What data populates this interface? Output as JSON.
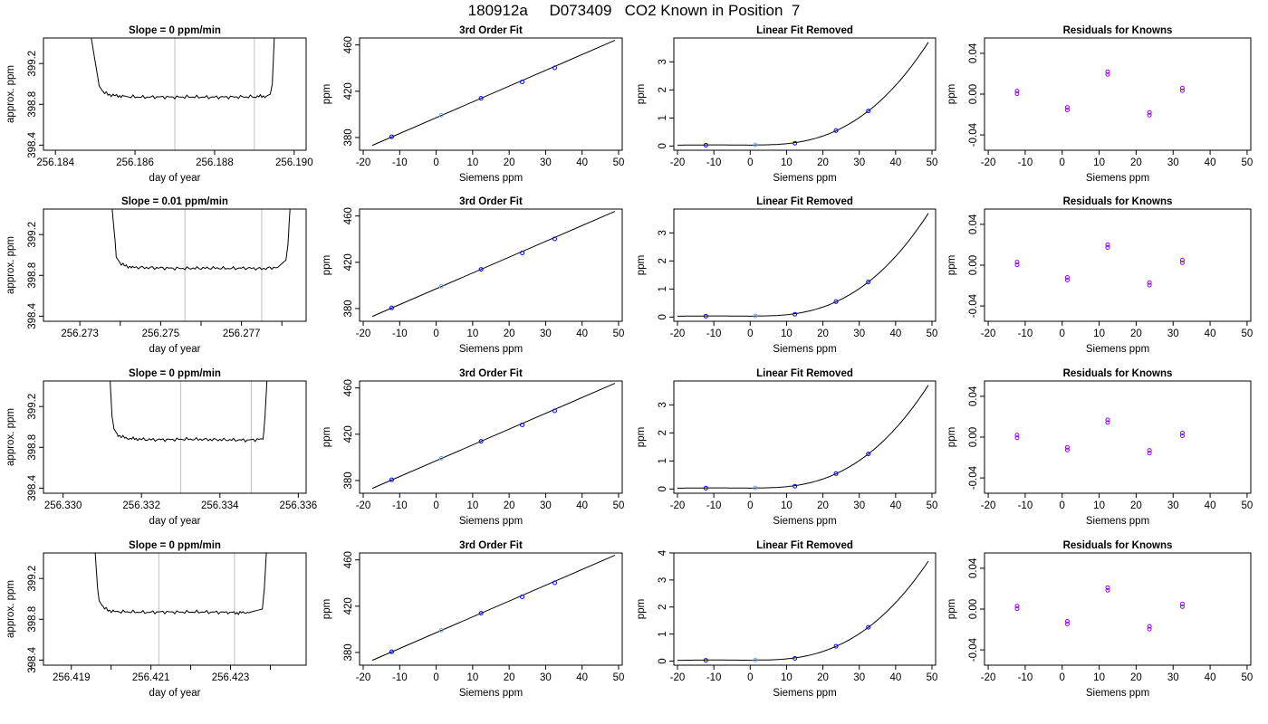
{
  "page_title": "180912a     D073409   CO2 Known in Position  7",
  "colors": {
    "trace": "#000000",
    "marker_line": "#c8c8c8",
    "known_points": "#0000ff",
    "residual_points": "#9900ff",
    "reference_point": "#66aaff"
  },
  "chart_data": [
    {
      "type": "line",
      "title": "Slope =  0  ppm/min",
      "xlabel": "day of year",
      "ylabel": "approx. ppm",
      "xlim": [
        256.1837,
        256.1903
      ],
      "ylim": [
        398.35,
        399.45
      ],
      "xticks": [
        256.184,
        256.186,
        256.188,
        256.19
      ],
      "xtick_labels": [
        "256.184",
        "256.186",
        "256.188",
        "256.190"
      ],
      "yticks": [
        398.4,
        398.8,
        399.2
      ],
      "ytick_labels": [
        "398.4",
        "398.8",
        "399.2"
      ],
      "markers": [
        256.187,
        256.189
      ],
      "x": [
        256.1849,
        256.18505,
        256.1851,
        256.1852,
        256.1853,
        256.1855,
        256.1858,
        256.1862,
        256.1866,
        256.187,
        256.1874,
        256.1878,
        256.1882,
        256.1886,
        256.189,
        256.1893,
        256.1894,
        256.18945,
        256.1895
      ],
      "y": [
        399.45,
        399.1,
        398.98,
        398.92,
        398.9,
        398.885,
        398.875,
        398.87,
        398.872,
        398.87,
        398.873,
        398.87,
        398.871,
        398.872,
        398.875,
        398.88,
        398.9,
        399.0,
        399.45
      ]
    },
    {
      "type": "scatter",
      "title": "3rd Order Fit",
      "xlabel": "Siemens ppm",
      "ylabel": "ppm",
      "xlim": [
        -21,
        51
      ],
      "ylim": [
        369,
        466
      ],
      "xticks": [
        -20,
        -10,
        0,
        10,
        20,
        30,
        40,
        50
      ],
      "xtick_labels": [
        "-20",
        "-10",
        "0",
        "10",
        "20",
        "30",
        "40",
        "50"
      ],
      "yticks": [
        380,
        420,
        460
      ],
      "ytick_labels": [
        "380",
        "420",
        "460"
      ],
      "fit_x": [
        -17.5,
        49
      ],
      "fit_y": [
        373.2,
        464
      ],
      "points_x": [
        -12.2,
        1.4,
        12.3,
        23.6,
        32.5
      ],
      "points_y": [
        380.6,
        399.2,
        413.9,
        428.1,
        440.2
      ]
    },
    {
      "type": "scatter",
      "title": "Linear Fit Removed",
      "xlabel": "Siemens ppm",
      "ylabel": "ppm",
      "xlim": [
        -21,
        51
      ],
      "ylim": [
        -0.15,
        3.85
      ],
      "xticks": [
        -20,
        -10,
        0,
        10,
        20,
        30,
        40,
        50
      ],
      "xtick_labels": [
        "-20",
        "-10",
        "0",
        "10",
        "20",
        "30",
        "40",
        "50"
      ],
      "yticks": [
        0,
        1,
        2,
        3
      ],
      "ytick_labels": [
        "0",
        "1",
        "2",
        "3"
      ],
      "points_x": [
        -12.2,
        1.4,
        12.3,
        23.6,
        32.5
      ],
      "points_y": [
        0.03,
        0.04,
        0.1,
        0.55,
        1.25
      ]
    },
    {
      "type": "scatter",
      "title": "Residuals for Knowns",
      "xlabel": "Siemens ppm",
      "ylabel": "ppm",
      "xlim": [
        -21,
        51
      ],
      "ylim": [
        -0.055,
        0.055
      ],
      "xticks": [
        -20,
        -10,
        0,
        10,
        20,
        30,
        40,
        50
      ],
      "xtick_labels": [
        "-20",
        "-10",
        "0",
        "10",
        "20",
        "30",
        "40",
        "50"
      ],
      "yticks": [
        -0.04,
        0,
        0.04
      ],
      "ytick_labels": [
        "-0.04",
        "0.00",
        "0.04"
      ],
      "points_x": [
        -12.2,
        1.4,
        12.3,
        23.6,
        32.5
      ],
      "points_y": [
        0.003,
        -0.013,
        0.022,
        -0.018,
        0.006
      ]
    },
    {
      "type": "line",
      "title": "Slope =  0.01  ppm/min",
      "xlabel": "day of year",
      "ylabel": "approx. ppm",
      "xlim": [
        256.2721,
        256.2786
      ],
      "ylim": [
        398.35,
        399.45
      ],
      "xticks": [
        256.273,
        256.274,
        256.275,
        256.276,
        256.277,
        256.278
      ],
      "xtick_labels": [
        "256.273",
        "",
        "256.275",
        "",
        "256.277",
        ""
      ],
      "yticks": [
        398.4,
        398.8,
        399.2
      ],
      "ytick_labels": [
        "398.4",
        "398.8",
        "399.2"
      ],
      "markers": [
        256.2756,
        256.2775
      ],
      "x": [
        256.2738,
        256.27388,
        256.2739,
        256.274,
        256.2741,
        256.2743,
        256.2747,
        256.2751,
        256.2755,
        256.2759,
        256.2763,
        256.2767,
        256.2771,
        256.2775,
        256.2779,
        256.2781,
        256.27815,
        256.2782
      ],
      "y": [
        399.45,
        399.1,
        398.98,
        398.92,
        398.895,
        398.88,
        398.875,
        398.872,
        398.868,
        398.87,
        398.872,
        398.868,
        398.872,
        398.865,
        398.88,
        398.95,
        399.1,
        399.45
      ]
    },
    {
      "type": "scatter",
      "title": "3rd Order Fit",
      "xlabel": "Siemens ppm",
      "ylabel": "ppm",
      "xlim": [
        -21,
        51
      ],
      "ylim": [
        369,
        466
      ],
      "xticks": [
        -20,
        -10,
        0,
        10,
        20,
        30,
        40,
        50
      ],
      "xtick_labels": [
        "-20",
        "-10",
        "0",
        "10",
        "20",
        "30",
        "40",
        "50"
      ],
      "yticks": [
        380,
        420,
        460
      ],
      "ytick_labels": [
        "380",
        "420",
        "460"
      ],
      "fit_x": [
        -17.5,
        49
      ],
      "fit_y": [
        373.2,
        464
      ],
      "points_x": [
        -12.2,
        1.4,
        12.3,
        23.6,
        32.5
      ],
      "points_y": [
        380.6,
        399.2,
        413.9,
        428.1,
        440.2
      ]
    },
    {
      "type": "scatter",
      "title": "Linear Fit Removed",
      "xlabel": "Siemens ppm",
      "ylabel": "ppm",
      "xlim": [
        -21,
        51
      ],
      "ylim": [
        -0.15,
        3.85
      ],
      "xticks": [
        -20,
        -10,
        0,
        10,
        20,
        30,
        40,
        50
      ],
      "xtick_labels": [
        "-20",
        "-10",
        "0",
        "10",
        "20",
        "30",
        "40",
        "50"
      ],
      "yticks": [
        0,
        1,
        2,
        3
      ],
      "ytick_labels": [
        "0",
        "1",
        "2",
        "3"
      ],
      "points_x": [
        -12.2,
        1.4,
        12.3,
        23.6,
        32.5
      ],
      "points_y": [
        0.03,
        0.04,
        0.1,
        0.55,
        1.25
      ]
    },
    {
      "type": "scatter",
      "title": "Residuals for Knowns",
      "xlabel": "Siemens ppm",
      "ylabel": "ppm",
      "xlim": [
        -21,
        51
      ],
      "ylim": [
        -0.055,
        0.055
      ],
      "xticks": [
        -20,
        -10,
        0,
        10,
        20,
        30,
        40,
        50
      ],
      "xtick_labels": [
        "-20",
        "-10",
        "0",
        "10",
        "20",
        "30",
        "40",
        "50"
      ],
      "yticks": [
        -0.04,
        0,
        0.04
      ],
      "ytick_labels": [
        "-0.04",
        "0.00",
        "0.04"
      ],
      "points_x": [
        -12.2,
        1.4,
        12.3,
        23.6,
        32.5
      ],
      "points_y": [
        0.003,
        -0.012,
        0.02,
        -0.017,
        0.005
      ]
    },
    {
      "type": "line",
      "title": "Slope =  0  ppm/min",
      "xlabel": "day of year",
      "ylabel": "approx. ppm",
      "xlim": [
        256.3295,
        256.3362
      ],
      "ylim": [
        398.35,
        399.45
      ],
      "xticks": [
        256.33,
        256.332,
        256.334,
        256.336
      ],
      "xtick_labels": [
        "256.330",
        "256.332",
        "256.334",
        "256.336"
      ],
      "yticks": [
        398.4,
        398.8,
        399.2
      ],
      "ytick_labels": [
        "398.4",
        "398.8",
        "399.2"
      ],
      "markers": [
        256.333,
        256.3348
      ],
      "x": [
        256.3312,
        256.33125,
        256.3313,
        256.3314,
        256.3316,
        256.3319,
        256.3323,
        256.3327,
        256.3331,
        256.3335,
        256.3339,
        256.3343,
        256.3347,
        256.3351,
        256.33512,
        256.33515,
        256.3352
      ],
      "y": [
        399.45,
        399.1,
        398.98,
        398.92,
        398.89,
        398.88,
        398.875,
        398.875,
        398.88,
        398.878,
        398.875,
        398.873,
        398.87,
        398.88,
        398.95,
        399.1,
        399.45
      ]
    },
    {
      "type": "scatter",
      "title": "3rd Order Fit",
      "xlabel": "Siemens ppm",
      "ylabel": "ppm",
      "xlim": [
        -21,
        51
      ],
      "ylim": [
        369,
        466
      ],
      "xticks": [
        -20,
        -10,
        0,
        10,
        20,
        30,
        40,
        50
      ],
      "xtick_labels": [
        "-20",
        "-10",
        "0",
        "10",
        "20",
        "30",
        "40",
        "50"
      ],
      "yticks": [
        380,
        420,
        460
      ],
      "ytick_labels": [
        "380",
        "420",
        "460"
      ],
      "fit_x": [
        -17.5,
        49
      ],
      "fit_y": [
        373.2,
        464
      ],
      "points_x": [
        -12.2,
        1.4,
        12.3,
        23.6,
        32.5
      ],
      "points_y": [
        380.6,
        399.2,
        413.9,
        428.1,
        440.2
      ]
    },
    {
      "type": "scatter",
      "title": "Linear Fit Removed",
      "xlabel": "Siemens ppm",
      "ylabel": "ppm",
      "xlim": [
        -21,
        51
      ],
      "ylim": [
        -0.15,
        3.85
      ],
      "xticks": [
        -20,
        -10,
        0,
        10,
        20,
        30,
        40,
        50
      ],
      "xtick_labels": [
        "-20",
        "-10",
        "0",
        "10",
        "20",
        "30",
        "40",
        "50"
      ],
      "yticks": [
        0,
        1,
        2,
        3
      ],
      "ytick_labels": [
        "0",
        "1",
        "2",
        "3"
      ],
      "points_x": [
        -12.2,
        1.4,
        12.3,
        23.6,
        32.5
      ],
      "points_y": [
        0.03,
        0.04,
        0.1,
        0.55,
        1.25
      ]
    },
    {
      "type": "scatter",
      "title": "Residuals for Knowns",
      "xlabel": "Siemens ppm",
      "ylabel": "ppm",
      "xlim": [
        -21,
        51
      ],
      "ylim": [
        -0.055,
        0.055
      ],
      "xticks": [
        -20,
        -10,
        0,
        10,
        20,
        30,
        40,
        50
      ],
      "xtick_labels": [
        "-20",
        "-10",
        "0",
        "10",
        "20",
        "30",
        "40",
        "50"
      ],
      "yticks": [
        -0.04,
        0,
        0.04
      ],
      "ytick_labels": [
        "-0.04",
        "0.00",
        "0.04"
      ],
      "points_x": [
        -12.2,
        1.4,
        12.3,
        23.6,
        32.5
      ],
      "points_y": [
        0.002,
        -0.01,
        0.017,
        -0.013,
        0.004
      ]
    },
    {
      "type": "line",
      "title": "Slope =  0  ppm/min",
      "xlabel": "day of year",
      "ylabel": "approx. ppm",
      "xlim": [
        256.4183,
        256.4249
      ],
      "ylim": [
        398.35,
        399.45
      ],
      "xticks": [
        256.418,
        256.419,
        256.42,
        256.421,
        256.422,
        256.423,
        256.424
      ],
      "xtick_labels": [
        "",
        "256.419",
        "",
        "256.421",
        "",
        "256.423",
        ""
      ],
      "yticks": [
        398.4,
        398.8,
        399.2
      ],
      "ytick_labels": [
        "398.4",
        "398.8",
        "399.2"
      ],
      "markers": [
        256.4212,
        256.4231
      ],
      "x": [
        256.4196,
        256.41966,
        256.4197,
        256.4198,
        256.4199,
        256.4201,
        256.4205,
        256.4209,
        256.4213,
        256.4217,
        256.4221,
        256.4225,
        256.4229,
        256.4232,
        256.4235,
        256.4238,
        256.42385,
        256.4239
      ],
      "y": [
        399.45,
        399.1,
        398.98,
        398.92,
        398.89,
        398.875,
        398.872,
        398.868,
        398.872,
        398.87,
        398.872,
        398.87,
        398.868,
        398.862,
        398.87,
        398.9,
        399.1,
        399.45
      ]
    },
    {
      "type": "scatter",
      "title": "3rd Order Fit",
      "xlabel": "Siemens ppm",
      "ylabel": "ppm",
      "xlim": [
        -21,
        51
      ],
      "ylim": [
        369,
        466
      ],
      "xticks": [
        -20,
        -10,
        0,
        10,
        20,
        30,
        40,
        50
      ],
      "xtick_labels": [
        "-20",
        "-10",
        "0",
        "10",
        "20",
        "30",
        "40",
        "50"
      ],
      "yticks": [
        380,
        420,
        460
      ],
      "ytick_labels": [
        "380",
        "420",
        "460"
      ],
      "fit_x": [
        -17.5,
        49
      ],
      "fit_y": [
        373.2,
        464
      ],
      "points_x": [
        -12.2,
        1.4,
        12.3,
        23.6,
        32.5
      ],
      "points_y": [
        380.6,
        399.2,
        413.9,
        428.1,
        440.2
      ]
    },
    {
      "type": "scatter",
      "title": "Linear Fit Removed",
      "xlabel": "Siemens ppm",
      "ylabel": "ppm",
      "xlim": [
        -21,
        51
      ],
      "ylim": [
        -0.15,
        4.0
      ],
      "xticks": [
        -20,
        -10,
        0,
        10,
        20,
        30,
        40,
        50
      ],
      "xtick_labels": [
        "-20",
        "-10",
        "0",
        "10",
        "20",
        "30",
        "40",
        "50"
      ],
      "yticks": [
        0,
        1,
        2,
        3,
        4
      ],
      "ytick_labels": [
        "0",
        "1",
        "2",
        "3",
        "4"
      ],
      "points_x": [
        -12.2,
        1.4,
        12.3,
        23.6,
        32.5
      ],
      "points_y": [
        0.03,
        0.04,
        0.1,
        0.55,
        1.25
      ]
    },
    {
      "type": "scatter",
      "title": "Residuals for Knowns",
      "xlabel": "Siemens ppm",
      "ylabel": "ppm",
      "xlim": [
        -21,
        51
      ],
      "ylim": [
        -0.055,
        0.055
      ],
      "xticks": [
        -20,
        -10,
        0,
        10,
        20,
        30,
        40,
        50
      ],
      "xtick_labels": [
        "-20",
        "-10",
        "0",
        "10",
        "20",
        "30",
        "40",
        "50"
      ],
      "yticks": [
        -0.04,
        0,
        0.04
      ],
      "ytick_labels": [
        "-0.04",
        "0.00",
        "0.04"
      ],
      "points_x": [
        -12.2,
        1.4,
        12.3,
        23.6,
        32.5
      ],
      "points_y": [
        0.003,
        -0.012,
        0.021,
        -0.017,
        0.005
      ]
    }
  ]
}
